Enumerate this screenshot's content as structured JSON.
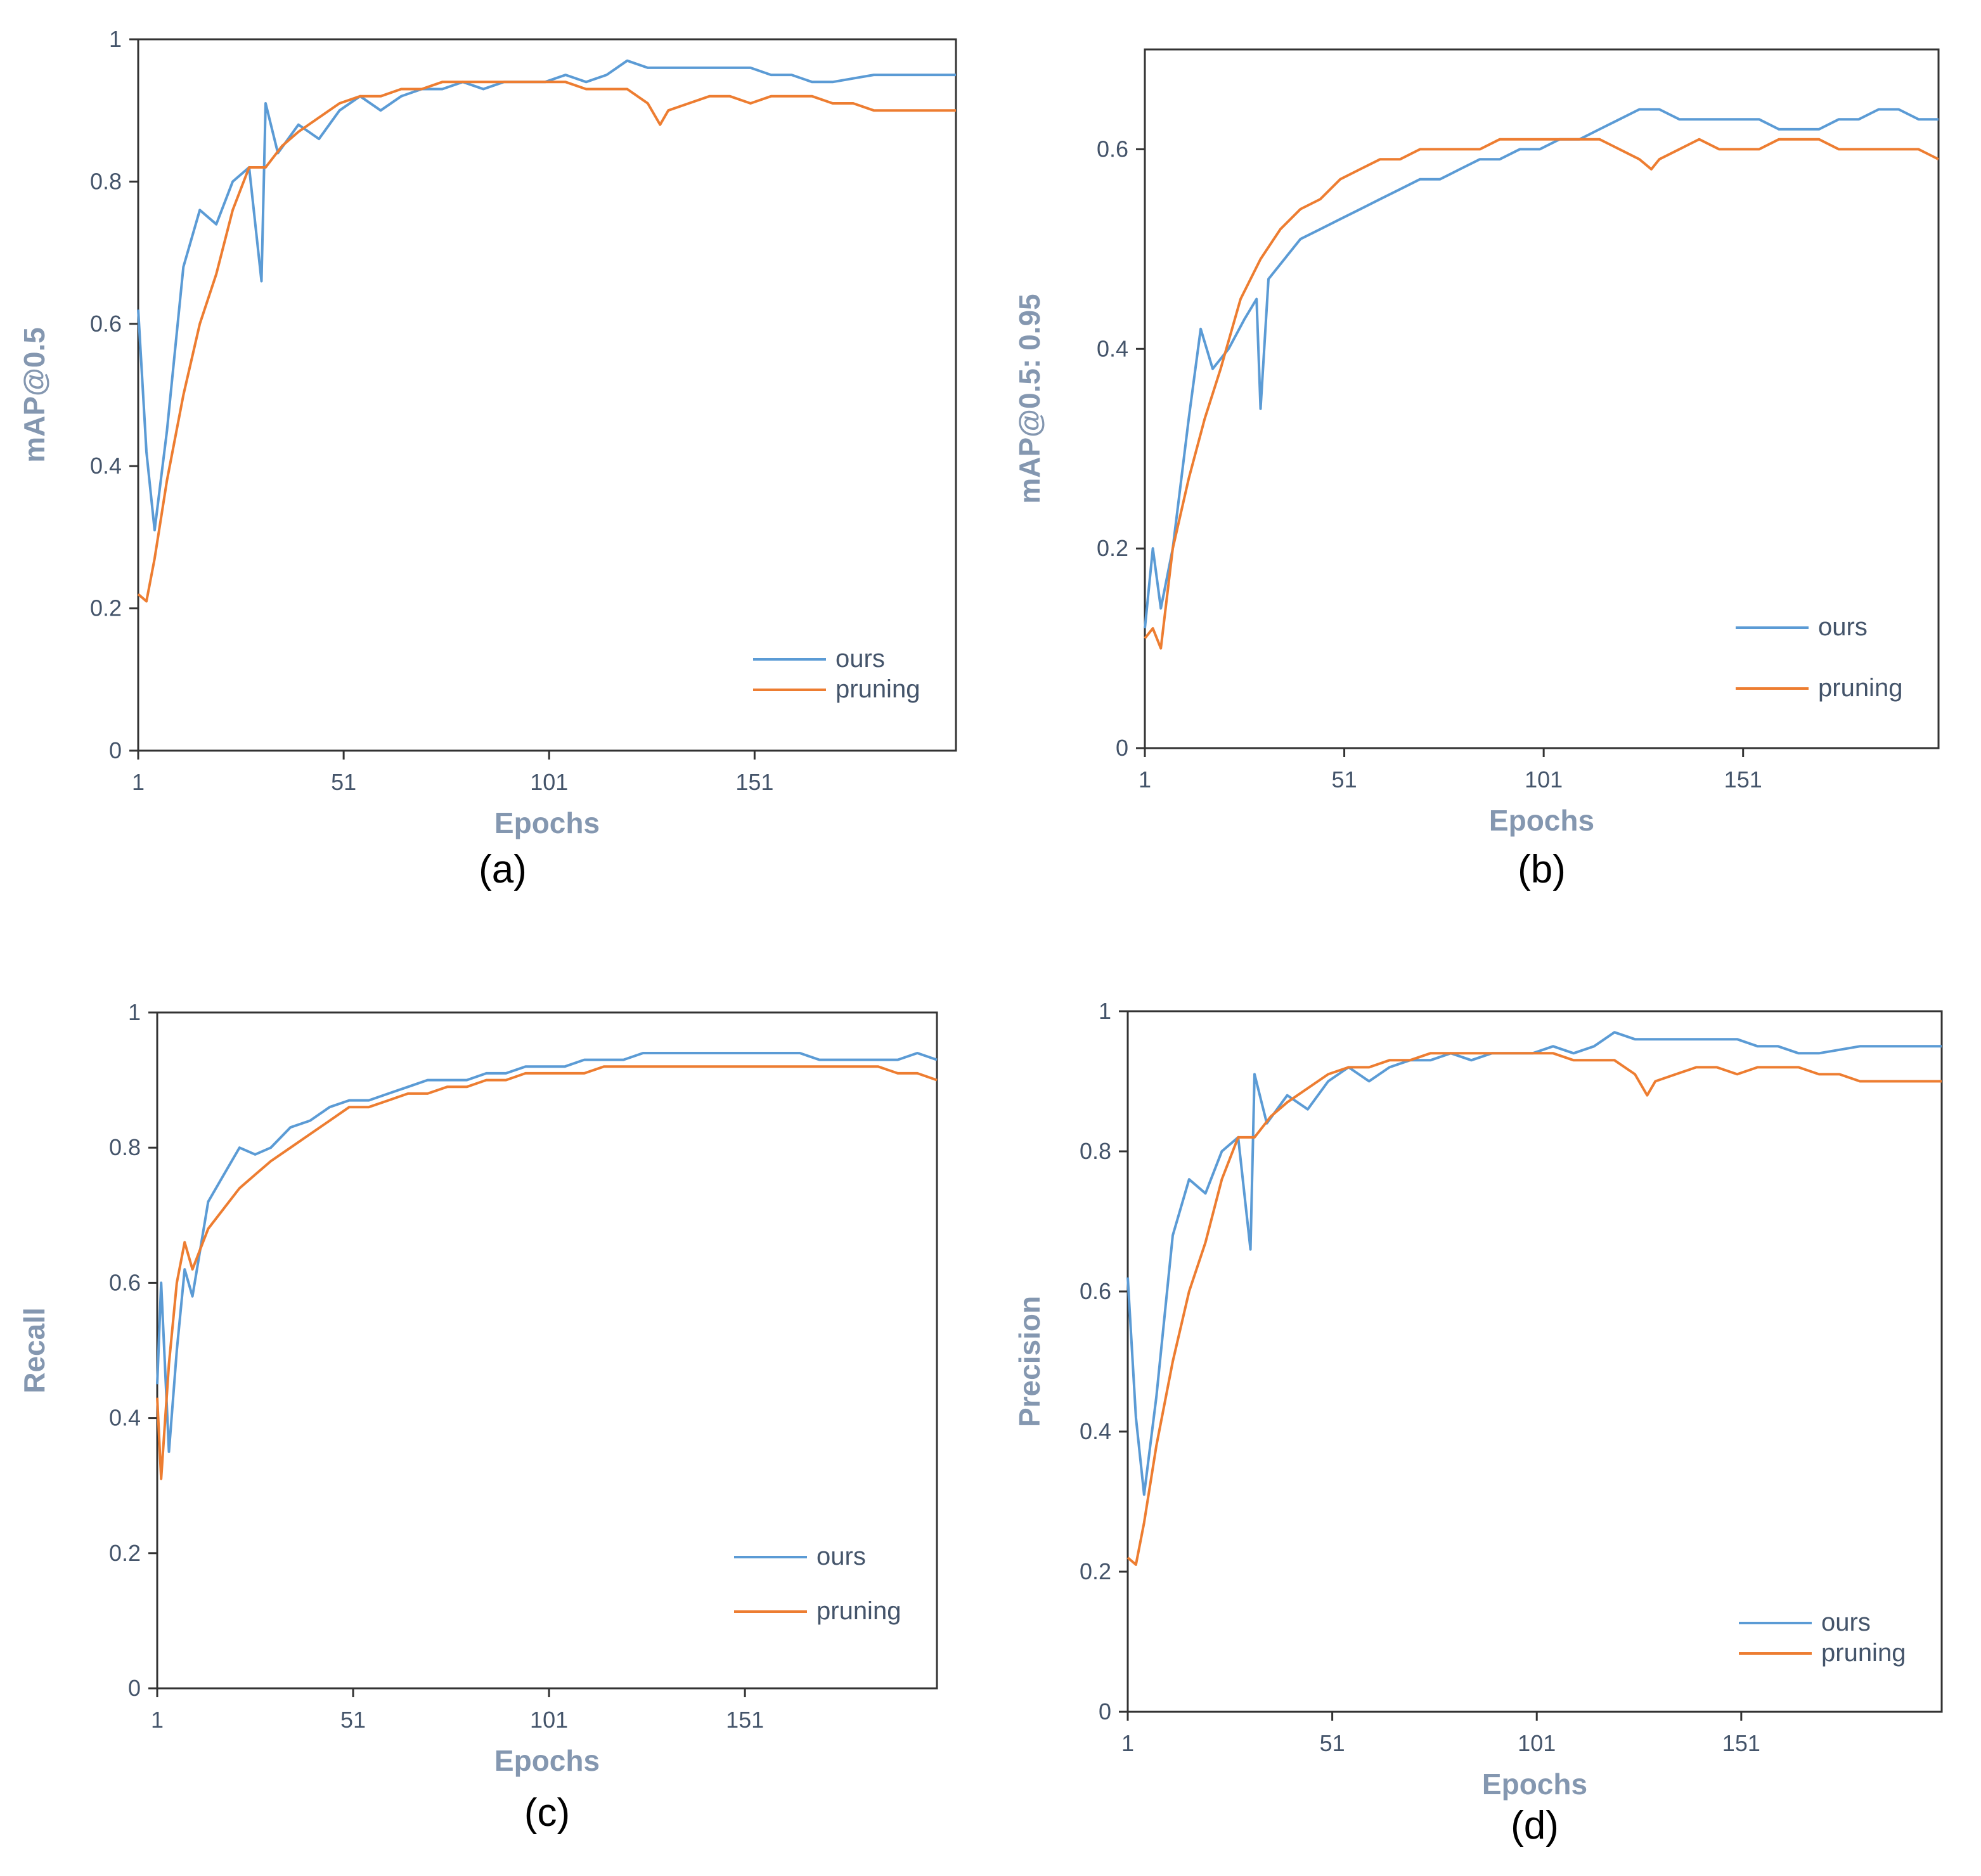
{
  "colors": {
    "ours": "#5b9bd5",
    "pruning": "#ed7d31",
    "tick": "#44546a",
    "axis_title": "#8497b0"
  },
  "chart_data": [
    {
      "type": "line",
      "panel_label": "(a)",
      "xlabel": "Epochs",
      "ylabel": "mAP@0.5",
      "xlim": [
        1,
        200
      ],
      "ylim": [
        0,
        1
      ],
      "xticks": [
        "1",
        "51",
        "101",
        "151"
      ],
      "yticks": [
        "0",
        "0.2",
        "0.4",
        "0.6",
        "0.8",
        "1"
      ],
      "legend_position": "bottom-right",
      "series": [
        {
          "name": "ours",
          "color": "#5b9bd5",
          "x": [
            1,
            3,
            5,
            8,
            12,
            16,
            20,
            24,
            28,
            31,
            32,
            35,
            40,
            45,
            50,
            55,
            60,
            65,
            70,
            75,
            80,
            85,
            90,
            95,
            100,
            105,
            110,
            115,
            120,
            125,
            130,
            135,
            140,
            145,
            150,
            155,
            160,
            165,
            170,
            175,
            180,
            185,
            190,
            195,
            200
          ],
          "y": [
            0.62,
            0.42,
            0.31,
            0.45,
            0.68,
            0.76,
            0.74,
            0.8,
            0.82,
            0.66,
            0.91,
            0.84,
            0.88,
            0.86,
            0.9,
            0.92,
            0.9,
            0.92,
            0.93,
            0.93,
            0.94,
            0.93,
            0.94,
            0.94,
            0.94,
            0.95,
            0.94,
            0.95,
            0.97,
            0.96,
            0.96,
            0.96,
            0.96,
            0.96,
            0.96,
            0.95,
            0.95,
            0.94,
            0.94,
            0.945,
            0.95,
            0.95,
            0.95,
            0.95,
            0.95
          ]
        },
        {
          "name": "pruning",
          "color": "#ed7d31",
          "x": [
            1,
            3,
            5,
            8,
            12,
            16,
            20,
            24,
            28,
            32,
            36,
            40,
            45,
            50,
            55,
            60,
            65,
            70,
            75,
            80,
            85,
            90,
            95,
            100,
            105,
            110,
            115,
            120,
            125,
            128,
            130,
            135,
            140,
            145,
            150,
            155,
            160,
            165,
            170,
            175,
            180,
            185,
            190,
            195,
            200
          ],
          "y": [
            0.22,
            0.21,
            0.27,
            0.38,
            0.5,
            0.6,
            0.67,
            0.76,
            0.82,
            0.82,
            0.85,
            0.87,
            0.89,
            0.91,
            0.92,
            0.92,
            0.93,
            0.93,
            0.94,
            0.94,
            0.94,
            0.94,
            0.94,
            0.94,
            0.94,
            0.93,
            0.93,
            0.93,
            0.91,
            0.88,
            0.9,
            0.91,
            0.92,
            0.92,
            0.91,
            0.92,
            0.92,
            0.92,
            0.91,
            0.91,
            0.9,
            0.9,
            0.9,
            0.9,
            0.9
          ]
        }
      ]
    },
    {
      "type": "line",
      "panel_label": "(b)",
      "xlabel": "Epochs",
      "ylabel": "mAP@0.5: 0.95",
      "xlim": [
        1,
        200
      ],
      "ylim": [
        0,
        0.7
      ],
      "xticks": [
        "1",
        "51",
        "101",
        "151"
      ],
      "yticks": [
        "0",
        "0.2",
        "0.4",
        "0.6"
      ],
      "legend_position": "bottom-right",
      "series": [
        {
          "name": "ours",
          "color": "#5b9bd5",
          "x": [
            1,
            3,
            5,
            8,
            12,
            15,
            18,
            22,
            26,
            29,
            30,
            32,
            36,
            40,
            45,
            50,
            55,
            60,
            65,
            70,
            75,
            80,
            85,
            90,
            95,
            100,
            105,
            110,
            115,
            120,
            125,
            130,
            135,
            140,
            145,
            150,
            155,
            160,
            165,
            170,
            175,
            180,
            185,
            190,
            195,
            200
          ],
          "y": [
            0.12,
            0.2,
            0.14,
            0.2,
            0.33,
            0.42,
            0.38,
            0.4,
            0.43,
            0.45,
            0.34,
            0.47,
            0.49,
            0.51,
            0.52,
            0.53,
            0.54,
            0.55,
            0.56,
            0.57,
            0.57,
            0.58,
            0.59,
            0.59,
            0.6,
            0.6,
            0.61,
            0.61,
            0.62,
            0.63,
            0.64,
            0.64,
            0.63,
            0.63,
            0.63,
            0.63,
            0.63,
            0.62,
            0.62,
            0.62,
            0.63,
            0.63,
            0.64,
            0.64,
            0.63,
            0.63
          ]
        },
        {
          "name": "pruning",
          "color": "#ed7d31",
          "x": [
            1,
            3,
            5,
            8,
            12,
            16,
            20,
            25,
            30,
            35,
            40,
            45,
            50,
            55,
            60,
            65,
            70,
            75,
            80,
            85,
            90,
            95,
            100,
            105,
            110,
            115,
            120,
            125,
            128,
            130,
            135,
            140,
            145,
            150,
            155,
            160,
            165,
            170,
            175,
            180,
            185,
            190,
            195,
            200
          ],
          "y": [
            0.11,
            0.12,
            0.1,
            0.2,
            0.27,
            0.33,
            0.38,
            0.45,
            0.49,
            0.52,
            0.54,
            0.55,
            0.57,
            0.58,
            0.59,
            0.59,
            0.6,
            0.6,
            0.6,
            0.6,
            0.61,
            0.61,
            0.61,
            0.61,
            0.61,
            0.61,
            0.6,
            0.59,
            0.58,
            0.59,
            0.6,
            0.61,
            0.6,
            0.6,
            0.6,
            0.61,
            0.61,
            0.61,
            0.6,
            0.6,
            0.6,
            0.6,
            0.6,
            0.59
          ]
        }
      ]
    },
    {
      "type": "line",
      "panel_label": "(c)",
      "xlabel": "Epochs",
      "ylabel": "Recall",
      "xlim": [
        1,
        200
      ],
      "ylim": [
        0,
        1
      ],
      "xticks": [
        "1",
        "51",
        "101",
        "151"
      ],
      "yticks": [
        "0",
        "0.2",
        "0.4",
        "0.6",
        "0.8",
        "1"
      ],
      "legend_position": "bottom-right",
      "series": [
        {
          "name": "ours",
          "color": "#5b9bd5",
          "x": [
            1,
            2,
            4,
            6,
            8,
            10,
            14,
            18,
            22,
            26,
            30,
            35,
            40,
            45,
            50,
            55,
            60,
            65,
            70,
            75,
            80,
            85,
            90,
            95,
            100,
            105,
            110,
            115,
            120,
            125,
            130,
            135,
            140,
            145,
            150,
            155,
            160,
            165,
            170,
            175,
            180,
            185,
            190,
            195,
            200
          ],
          "y": [
            0.45,
            0.6,
            0.35,
            0.5,
            0.62,
            0.58,
            0.72,
            0.76,
            0.8,
            0.79,
            0.8,
            0.83,
            0.84,
            0.86,
            0.87,
            0.87,
            0.88,
            0.89,
            0.9,
            0.9,
            0.9,
            0.91,
            0.91,
            0.92,
            0.92,
            0.92,
            0.93,
            0.93,
            0.93,
            0.94,
            0.94,
            0.94,
            0.94,
            0.94,
            0.94,
            0.94,
            0.94,
            0.94,
            0.93,
            0.93,
            0.93,
            0.93,
            0.93,
            0.94,
            0.93
          ]
        },
        {
          "name": "pruning",
          "color": "#ed7d31",
          "x": [
            1,
            2,
            4,
            6,
            8,
            10,
            14,
            18,
            22,
            26,
            30,
            35,
            40,
            45,
            50,
            55,
            60,
            65,
            70,
            75,
            80,
            85,
            90,
            95,
            100,
            105,
            110,
            115,
            120,
            125,
            130,
            135,
            140,
            145,
            150,
            155,
            160,
            165,
            170,
            175,
            180,
            185,
            190,
            195,
            200
          ],
          "y": [
            0.43,
            0.31,
            0.48,
            0.6,
            0.66,
            0.62,
            0.68,
            0.71,
            0.74,
            0.76,
            0.78,
            0.8,
            0.82,
            0.84,
            0.86,
            0.86,
            0.87,
            0.88,
            0.88,
            0.89,
            0.89,
            0.9,
            0.9,
            0.91,
            0.91,
            0.91,
            0.91,
            0.92,
            0.92,
            0.92,
            0.92,
            0.92,
            0.92,
            0.92,
            0.92,
            0.92,
            0.92,
            0.92,
            0.92,
            0.92,
            0.92,
            0.92,
            0.91,
            0.91,
            0.9
          ]
        }
      ]
    },
    {
      "type": "line",
      "panel_label": "(d)",
      "xlabel": "Epochs",
      "ylabel": "Precision",
      "xlim": [
        1,
        200
      ],
      "ylim": [
        0,
        1
      ],
      "xticks": [
        "1",
        "51",
        "101",
        "151"
      ],
      "yticks": [
        "0",
        "0.2",
        "0.4",
        "0.6",
        "0.8",
        "1"
      ],
      "legend_position": "bottom-right",
      "series": [
        {
          "name": "ours",
          "color": "#5b9bd5",
          "x": [
            1,
            3,
            5,
            8,
            12,
            16,
            20,
            24,
            28,
            31,
            32,
            35,
            40,
            45,
            50,
            55,
            60,
            65,
            70,
            75,
            80,
            85,
            90,
            95,
            100,
            105,
            110,
            115,
            120,
            125,
            130,
            135,
            140,
            145,
            150,
            155,
            160,
            165,
            170,
            175,
            180,
            185,
            190,
            195,
            200
          ],
          "y": [
            0.62,
            0.42,
            0.31,
            0.45,
            0.68,
            0.76,
            0.74,
            0.8,
            0.82,
            0.66,
            0.91,
            0.84,
            0.88,
            0.86,
            0.9,
            0.92,
            0.9,
            0.92,
            0.93,
            0.93,
            0.94,
            0.93,
            0.94,
            0.94,
            0.94,
            0.95,
            0.94,
            0.95,
            0.97,
            0.96,
            0.96,
            0.96,
            0.96,
            0.96,
            0.96,
            0.95,
            0.95,
            0.94,
            0.94,
            0.945,
            0.95,
            0.95,
            0.95,
            0.95,
            0.95
          ]
        },
        {
          "name": "pruning",
          "color": "#ed7d31",
          "x": [
            1,
            3,
            5,
            8,
            12,
            16,
            20,
            24,
            28,
            32,
            36,
            40,
            45,
            50,
            55,
            60,
            65,
            70,
            75,
            80,
            85,
            90,
            95,
            100,
            105,
            110,
            115,
            120,
            125,
            128,
            130,
            135,
            140,
            145,
            150,
            155,
            160,
            165,
            170,
            175,
            180,
            185,
            190,
            195,
            200
          ],
          "y": [
            0.22,
            0.21,
            0.27,
            0.38,
            0.5,
            0.6,
            0.67,
            0.76,
            0.82,
            0.82,
            0.85,
            0.87,
            0.89,
            0.91,
            0.92,
            0.92,
            0.93,
            0.93,
            0.94,
            0.94,
            0.94,
            0.94,
            0.94,
            0.94,
            0.94,
            0.93,
            0.93,
            0.93,
            0.91,
            0.88,
            0.9,
            0.91,
            0.92,
            0.92,
            0.91,
            0.92,
            0.92,
            0.92,
            0.91,
            0.91,
            0.9,
            0.9,
            0.9,
            0.9,
            0.9
          ]
        }
      ]
    }
  ]
}
